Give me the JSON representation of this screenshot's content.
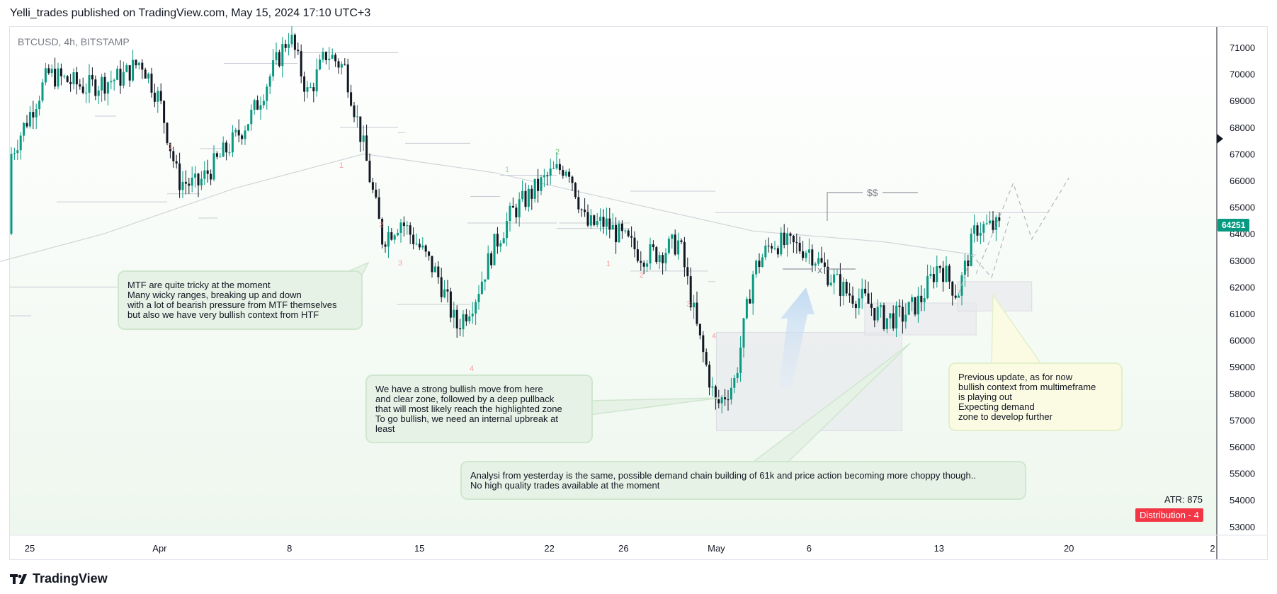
{
  "header": {
    "published": "Yelli_trades published on TradingView.com, May 15, 2024 17:10 UTC+3"
  },
  "symbol": {
    "label": "BTCUSD, 4h, BITSTAMP"
  },
  "footer": {
    "brand": "TradingView"
  },
  "price_axis": {
    "ticks": [
      "71000",
      "70000",
      "69000",
      "68000",
      "67000",
      "66000",
      "65000",
      "64000",
      "63000",
      "62000",
      "61000",
      "60000",
      "59000",
      "58000",
      "57000",
      "56000",
      "55000",
      "54000",
      "53000"
    ],
    "current_price": "64251"
  },
  "time_axis": {
    "ticks": [
      "25",
      "Apr",
      "8",
      "15",
      "22",
      "26",
      "May",
      "6",
      "13",
      "20",
      "2"
    ]
  },
  "notes": {
    "mtf": "MTF are quite tricky at the moment\nMany wicky ranges, breaking up and down\nwith a lot of bearish pressure from MTF themselves\nbut also we have very bullish context from HTF",
    "bullish_move": "We have a strong bullish move from here\nand clear zone, followed by a deep pullback\nthat will most likely reach the highlighted zone\nTo go bullish, we need an internal upbreak at\nleast",
    "analysis": "Analysi from yesterday is the same, possible demand chain building of 61k and price action becoming more choppy though..\nNo high quality trades available at the moment",
    "previous_update": "Previous update, as for now\nbullish context from multimeframe\nis playing out\nExpecting demand\nzone to develop further"
  },
  "indicators": {
    "atr": "ATR: 875",
    "distribution": "Distribution - 4"
  },
  "chart_labels": {
    "liquidity": "$$",
    "cross": "x",
    "counts": [
      "1",
      "1",
      "2",
      "3",
      "4",
      "2",
      "1",
      "1",
      "2",
      "3",
      "4"
    ]
  },
  "colors": {
    "up": "#089981",
    "down": "#131722",
    "count_red": "#f7a1a1",
    "count_green": "#6cc16c",
    "zone": "#e8eaed"
  },
  "chart_data": {
    "type": "candlestick",
    "title": "BTCUSD, 4h, BITSTAMP",
    "ylim": [
      52700,
      71800
    ],
    "x": [
      "2024-03-25",
      "2024-04-01",
      "2024-04-08",
      "2024-04-15",
      "2024-04-22",
      "2024-04-26",
      "2024-05-01",
      "2024-05-06",
      "2024-05-13",
      "2024-05-20"
    ],
    "close_path": [
      [
        "2024-03-22",
        64000
      ],
      [
        "2024-03-24",
        67000
      ],
      [
        "2024-03-26",
        70000
      ],
      [
        "2024-03-28",
        69500
      ],
      [
        "2024-03-30",
        69900
      ],
      [
        "2024-03-31",
        70500
      ],
      [
        "2024-04-01",
        69000
      ],
      [
        "2024-04-02",
        66000
      ],
      [
        "2024-04-03",
        65800
      ],
      [
        "2024-04-05",
        67500
      ],
      [
        "2024-04-06",
        68500
      ],
      [
        "2024-04-08",
        71500
      ],
      [
        "2024-04-09",
        69200
      ],
      [
        "2024-04-10",
        70800
      ],
      [
        "2024-04-11",
        70200
      ],
      [
        "2024-04-12",
        67200
      ],
      [
        "2024-04-13",
        63800
      ],
      [
        "2024-04-14",
        64500
      ],
      [
        "2024-04-15",
        63500
      ],
      [
        "2024-04-16",
        62400
      ],
      [
        "2024-04-17",
        60500
      ],
      [
        "2024-04-18",
        61600
      ],
      [
        "2024-04-19",
        63500
      ],
      [
        "2024-04-20",
        64800
      ],
      [
        "2024-04-22",
        66200
      ],
      [
        "2024-04-23",
        66600
      ],
      [
        "2024-04-24",
        64300
      ],
      [
        "2024-04-25",
        64400
      ],
      [
        "2024-04-27",
        63200
      ],
      [
        "2024-04-28",
        63300
      ],
      [
        "2024-04-29",
        63700
      ],
      [
        "2024-04-30",
        60300
      ],
      [
        "2024-05-01",
        57500
      ],
      [
        "2024-05-02",
        58500
      ],
      [
        "2024-05-03",
        62600
      ],
      [
        "2024-05-04",
        63700
      ],
      [
        "2024-05-06",
        63400
      ],
      [
        "2024-05-07",
        62500
      ],
      [
        "2024-05-08",
        61800
      ],
      [
        "2024-05-09",
        61500
      ],
      [
        "2024-05-10",
        60800
      ],
      [
        "2024-05-11",
        60900
      ],
      [
        "2024-05-12",
        61500
      ],
      [
        "2024-05-13",
        62900
      ],
      [
        "2024-05-14",
        61700
      ],
      [
        "2024-05-15",
        64251
      ]
    ],
    "moving_average": [
      [
        "2024-03-22",
        62700
      ],
      [
        "2024-03-29",
        64000
      ],
      [
        "2024-04-05",
        65700
      ],
      [
        "2024-04-12",
        67000
      ],
      [
        "2024-04-19",
        66300
      ],
      [
        "2024-04-26",
        65200
      ],
      [
        "2024-05-03",
        64100
      ],
      [
        "2024-05-10",
        63700
      ],
      [
        "2024-05-15",
        63200
      ]
    ],
    "projection": [
      [
        "2024-05-15",
        62500
      ],
      [
        "2024-05-17",
        65900
      ],
      [
        "2024-05-18",
        63800
      ],
      [
        "2024-05-20",
        66100
      ]
    ],
    "zones": [
      {
        "from": "2024-05-01",
        "to": "2024-05-11",
        "low": 56600,
        "high": 60300
      },
      {
        "from": "2024-05-09",
        "to": "2024-05-15",
        "low": 60200,
        "high": 61400
      },
      {
        "from": "2024-05-14",
        "to": "2024-05-18",
        "low": 61100,
        "high": 62200
      }
    ],
    "levels": {
      "liquidity": 64800,
      "internal_break": 62600
    }
  }
}
